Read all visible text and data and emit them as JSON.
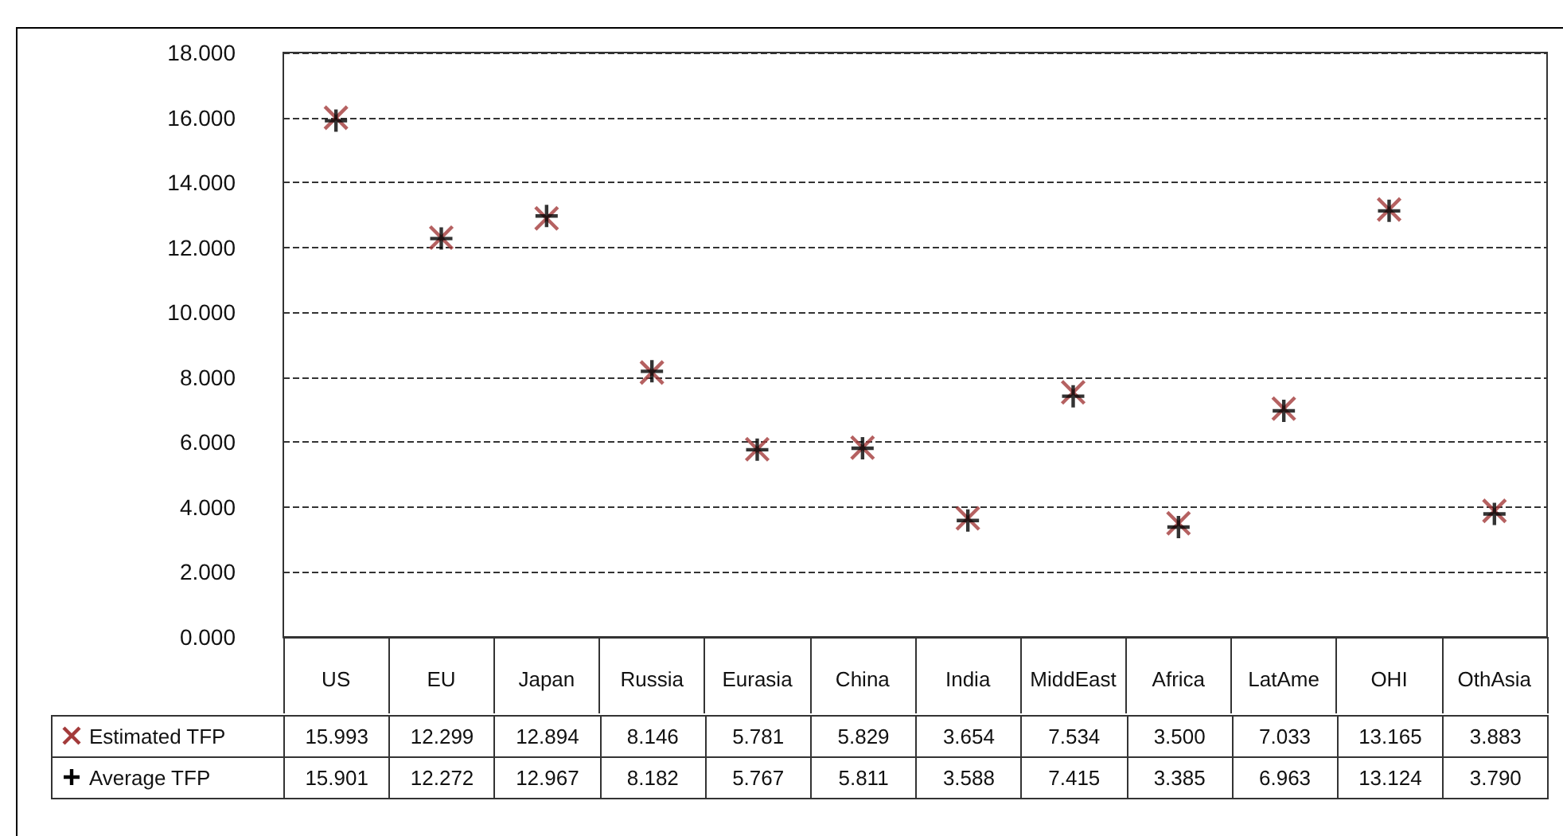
{
  "chart_data": {
    "type": "scatter",
    "categories": [
      "US",
      "EU",
      "Japan",
      "Russia",
      "Eurasia",
      "China",
      "India",
      "MiddEast",
      "Africa",
      "LatAme",
      "OHI",
      "OthAsia"
    ],
    "series": [
      {
        "name": "Estimated TFP",
        "color": "#a33a3a",
        "marker": "cross",
        "values": [
          15.993,
          12.299,
          12.894,
          8.146,
          5.781,
          5.829,
          3.654,
          7.534,
          3.5,
          7.033,
          13.165,
          3.883
        ],
        "value_labels": [
          "15.993",
          "12.299",
          "12.894",
          "8.146",
          "5.781",
          "5.829",
          "3.654",
          "7.534",
          "3.500",
          "7.033",
          "13.165",
          "3.883"
        ]
      },
      {
        "name": "Average TFP",
        "color": "#000000",
        "marker": "plus",
        "values": [
          15.901,
          12.272,
          12.967,
          8.182,
          5.767,
          5.811,
          3.588,
          7.415,
          3.385,
          6.963,
          13.124,
          3.79
        ],
        "value_labels": [
          "15.901",
          "12.272",
          "12.967",
          "8.182",
          "5.767",
          "5.811",
          "3.588",
          "7.415",
          "3.385",
          "6.963",
          "13.124",
          "3.790"
        ]
      }
    ],
    "ylim": [
      0,
      18
    ],
    "yticks": [
      {
        "value": 0,
        "label": "0.000"
      },
      {
        "value": 2,
        "label": "2.000"
      },
      {
        "value": 4,
        "label": "4.000"
      },
      {
        "value": 6,
        "label": "6.000"
      },
      {
        "value": 8,
        "label": "8.000"
      },
      {
        "value": 10,
        "label": "10.000"
      },
      {
        "value": 12,
        "label": "12.000"
      },
      {
        "value": 14,
        "label": "14.000"
      },
      {
        "value": 16,
        "label": "16.000"
      },
      {
        "value": 18,
        "label": "18.000"
      }
    ],
    "grid": "y",
    "legend": "bottom"
  }
}
